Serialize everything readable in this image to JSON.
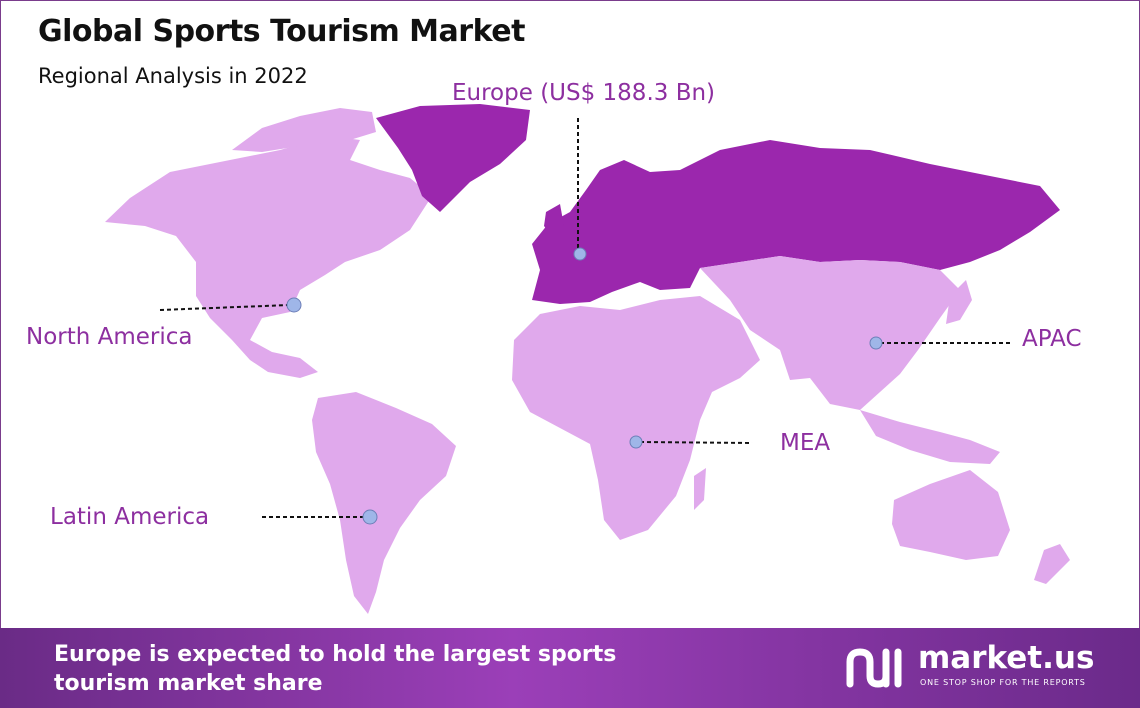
{
  "header": {
    "title": "Global Sports Tourism Market",
    "subtitle": "Regional Analysis in 2022"
  },
  "regions": {
    "europe": {
      "label": "Europe (US$ 188.3 Bn)",
      "highlighted": true
    },
    "north_america": {
      "label": "North America",
      "highlighted": false
    },
    "apac": {
      "label": "APAC",
      "highlighted": false
    },
    "mea": {
      "label": "MEA",
      "highlighted": false
    },
    "latin_america": {
      "label": "Latin America",
      "highlighted": false
    }
  },
  "colors": {
    "highlight": "#9b27ad",
    "land": "#e0a9ec",
    "label": "#8d2fa0",
    "marker": "#9fb6e8",
    "footer_start": "#6a2b86",
    "footer_end": "#9b3fb8"
  },
  "footer": {
    "line1": "Europe is expected to hold the largest sports",
    "line2": "tourism market share",
    "brand": "market.us",
    "tagline": "ONE STOP SHOP FOR THE REPORTS"
  }
}
